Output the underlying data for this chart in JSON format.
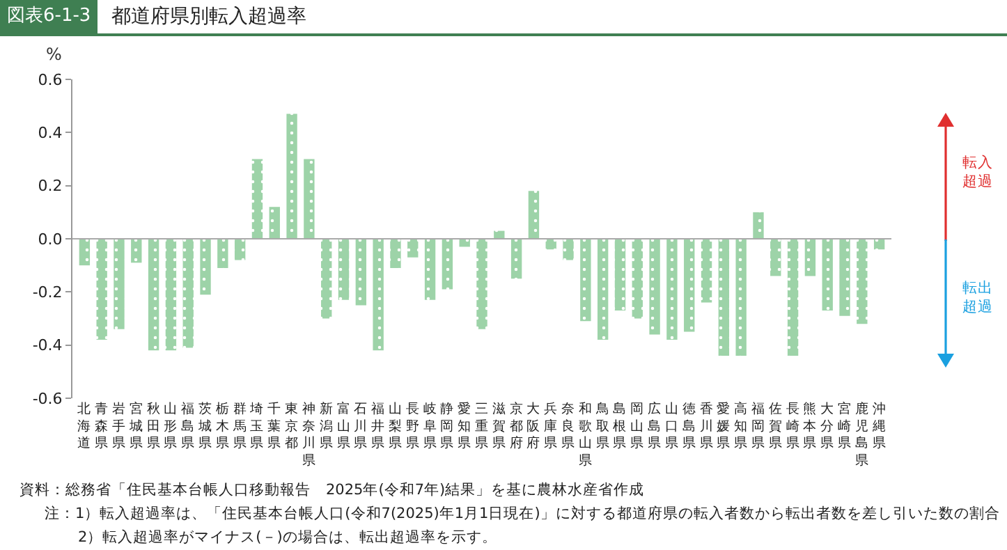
{
  "chart_data": {
    "type": "bar",
    "title": "都道府県別転入超過率",
    "ylabel": "%",
    "annotations": [
      "図表6-1-3",
      "転入超過",
      "転出超過",
      "資料：総務省「住民基本台帳人口移動報告　2025年(令和7年)結果」を基に農林水産省作成",
      "注：1）転入超過率は、「住民基本台帳人口(令和7(2025)年1月1日現在)」に対する都道府県の転入者数から転出者数を差し引いた数の割合",
      "2）転入超過率がマイナス(－)の場合は、転出超過率を示す。"
    ],
    "categories": [
      "北海道",
      "青森県",
      "岩手県",
      "宮城県",
      "秋田県",
      "山形県",
      "福島県",
      "茨城県",
      "栃木県",
      "群馬県",
      "埼玉県",
      "千葉県",
      "東京都",
      "神奈川県",
      "新潟県",
      "富山県",
      "石川県",
      "福井県",
      "山梨県",
      "長野県",
      "岐阜県",
      "静岡県",
      "愛知県",
      "三重県",
      "滋賀県",
      "京都府",
      "大阪府",
      "兵庫県",
      "奈良県",
      "和歌山県",
      "鳥取県",
      "島根県",
      "岡山県",
      "広島県",
      "山口県",
      "徳島県",
      "香川県",
      "愛媛県",
      "高知県",
      "福岡県",
      "佐賀県",
      "長崎県",
      "熊本県",
      "大分県",
      "宮崎県",
      "鹿児島県",
      "沖縄県"
    ],
    "values": [
      -0.1,
      -0.38,
      -0.34,
      -0.09,
      -0.42,
      -0.42,
      -0.41,
      -0.21,
      -0.11,
      -0.08,
      0.3,
      0.12,
      0.47,
      0.3,
      -0.3,
      -0.23,
      -0.25,
      -0.42,
      -0.11,
      -0.07,
      -0.23,
      -0.19,
      -0.03,
      -0.34,
      0.03,
      -0.15,
      0.18,
      -0.04,
      -0.08,
      -0.31,
      -0.38,
      -0.27,
      -0.3,
      -0.36,
      -0.38,
      -0.35,
      -0.24,
      -0.44,
      -0.44,
      0.1,
      -0.14,
      -0.44,
      -0.14,
      -0.27,
      -0.29,
      -0.32,
      -0.04
    ],
    "color": "#9dd3a8",
    "ylim": [
      -0.6,
      0.6
    ],
    "yticks": [
      {
        "value": -0.6,
        "label": "-0.6"
      },
      {
        "value": -0.4,
        "label": "-0.4"
      },
      {
        "value": -0.2,
        "label": "-0.2"
      },
      {
        "value": 0,
        "label": "0.0"
      },
      {
        "value": 0.2,
        "label": "0.2"
      },
      {
        "value": 0.4,
        "label": "0.4"
      },
      {
        "value": 0.6,
        "label": "0.6"
      }
    ],
    "ref_lines": [
      {
        "axis": "y",
        "value": 0,
        "color": "#aaaaaa"
      }
    ],
    "grid": false,
    "legend": false
  }
}
